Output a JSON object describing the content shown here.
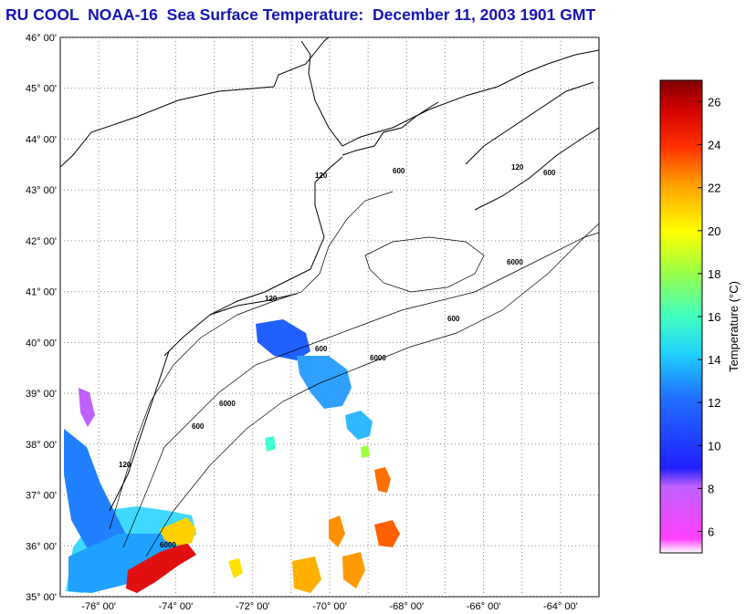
{
  "title": "RU COOL  NOAA-16  Sea Surface Temperature:  December 11, 2003 1901 GMT",
  "map": {
    "lon_range": [
      -77,
      -63
    ],
    "lat_range": [
      35,
      46
    ],
    "lat_ticks": [
      "35° 00'",
      "36° 00'",
      "37° 00'",
      "38° 00'",
      "39° 00'",
      "40° 00'",
      "41° 00'",
      "42° 00'",
      "43° 00'",
      "44° 00'",
      "45° 00'",
      "46° 00'"
    ],
    "lon_ticks": [
      "-76° 00'",
      "-74° 00'",
      "-72° 00'",
      "-70° 00'",
      "-68° 00'",
      "-66° 00'",
      "-64° 00'"
    ],
    "grid": true,
    "isobath_labels": [
      "120",
      "600",
      "6000"
    ]
  },
  "colorbar": {
    "label": "Temperature (°C)",
    "range": [
      5,
      27
    ],
    "ticks": [
      "6",
      "8",
      "10",
      "12",
      "14",
      "16",
      "18",
      "20",
      "22",
      "24",
      "26"
    ],
    "colors": [
      "#ffffff",
      "#ff40ff",
      "#c060ff",
      "#2020ff",
      "#2070ff",
      "#20d0ff",
      "#40ffc0",
      "#a0ff40",
      "#ffff00",
      "#ffa000",
      "#ff3000",
      "#d00000",
      "#800000"
    ]
  }
}
